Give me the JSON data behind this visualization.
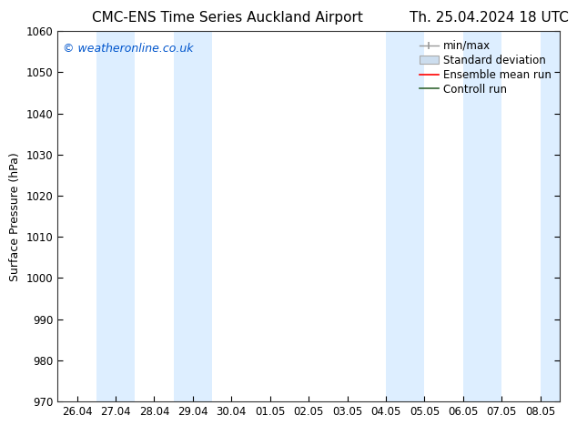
{
  "title_left": "CMC-ENS Time Series Auckland Airport",
  "title_right": "Th. 25.04.2024 18 UTC",
  "ylabel": "Surface Pressure (hPa)",
  "watermark": "© weatheronline.co.uk",
  "watermark_color": "#0055cc",
  "ylim": [
    970,
    1060
  ],
  "yticks": [
    970,
    980,
    990,
    1000,
    1010,
    1020,
    1030,
    1040,
    1050,
    1060
  ],
  "xtick_labels": [
    "26.04",
    "27.04",
    "28.04",
    "29.04",
    "30.04",
    "01.05",
    "02.05",
    "03.05",
    "04.05",
    "05.05",
    "06.05",
    "07.05",
    "08.05"
  ],
  "xtick_positions": [
    0,
    1,
    2,
    3,
    4,
    5,
    6,
    7,
    8,
    9,
    10,
    11,
    12
  ],
  "xlim": [
    -0.5,
    12.5
  ],
  "shade_bands": [
    {
      "x_start": 0.5,
      "x_end": 1.5
    },
    {
      "x_start": 2.5,
      "x_end": 3.5
    },
    {
      "x_start": 8.0,
      "x_end": 9.0
    },
    {
      "x_start": 10.0,
      "x_end": 11.0
    }
  ],
  "shade_partial": [
    {
      "x_start": 12.0,
      "x_end": 12.5
    }
  ],
  "shade_color": "#ddeeff",
  "background_color": "#ffffff",
  "legend_items": [
    {
      "label": "min/max",
      "color": "#aaaaaa",
      "style": "errorbar"
    },
    {
      "label": "Standard deviation",
      "color": "#bbccdd",
      "style": "box"
    },
    {
      "label": "Ensemble mean run",
      "color": "#ff0000",
      "style": "line"
    },
    {
      "label": "Controll run",
      "color": "#336633",
      "style": "line"
    }
  ],
  "title_fontsize": 11,
  "label_fontsize": 9,
  "tick_fontsize": 8.5,
  "legend_fontsize": 8.5,
  "watermark_fontsize": 9
}
